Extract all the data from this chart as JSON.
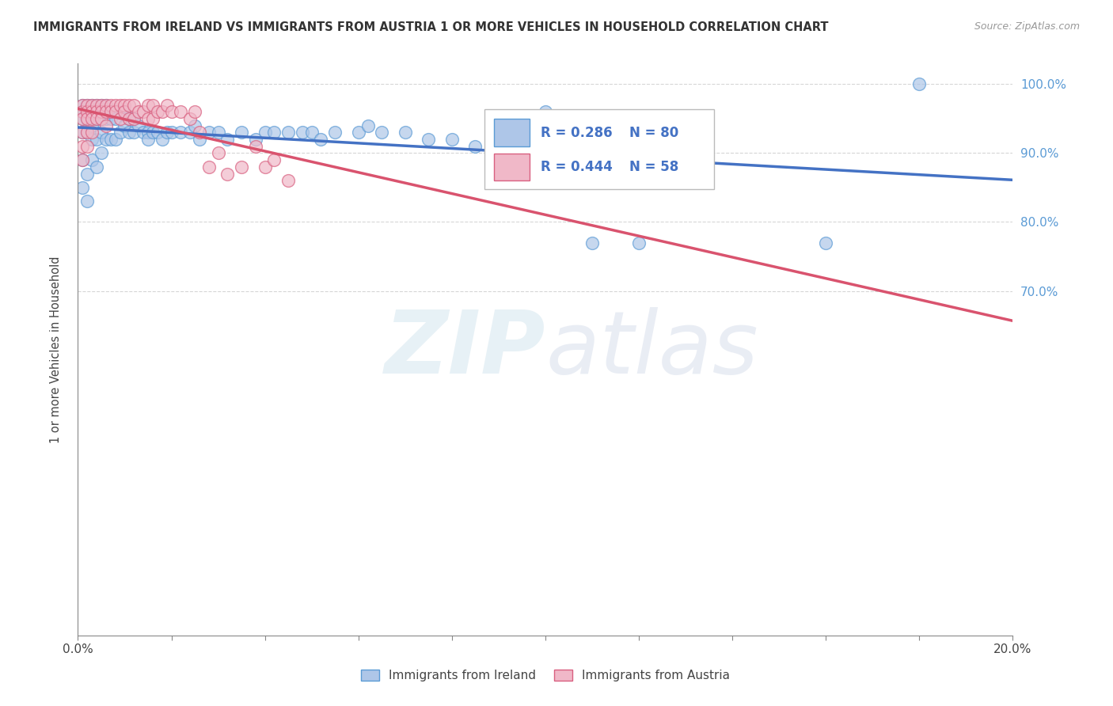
{
  "title": "IMMIGRANTS FROM IRELAND VS IMMIGRANTS FROM AUSTRIA 1 OR MORE VEHICLES IN HOUSEHOLD CORRELATION CHART",
  "source": "Source: ZipAtlas.com",
  "ylabel": "1 or more Vehicles in Household",
  "xlim": [
    0.0,
    0.2
  ],
  "ylim": [
    0.2,
    1.03
  ],
  "ireland_color": "#aec6e8",
  "ireland_edge_color": "#5b9bd5",
  "austria_color": "#f0b8c8",
  "austria_edge_color": "#d96080",
  "trend_ireland_color": "#4472c4",
  "trend_austria_color": "#d9536e",
  "R_ireland": 0.286,
  "N_ireland": 80,
  "R_austria": 0.444,
  "N_austria": 58,
  "legend_ireland": "Immigrants from Ireland",
  "legend_austria": "Immigrants from Austria",
  "background_color": "#ffffff",
  "grid_color": "#cccccc",
  "watermark_zip": "ZIP",
  "watermark_atlas": "atlas",
  "ireland_x": [
    0.001,
    0.001,
    0.001,
    0.001,
    0.001,
    0.001,
    0.002,
    0.002,
    0.002,
    0.002,
    0.002,
    0.002,
    0.003,
    0.003,
    0.003,
    0.003,
    0.003,
    0.004,
    0.004,
    0.004,
    0.004,
    0.005,
    0.005,
    0.005,
    0.005,
    0.006,
    0.006,
    0.006,
    0.007,
    0.007,
    0.007,
    0.008,
    0.008,
    0.009,
    0.009,
    0.01,
    0.01,
    0.011,
    0.011,
    0.012,
    0.012,
    0.013,
    0.014,
    0.015,
    0.015,
    0.016,
    0.017,
    0.018,
    0.019,
    0.02,
    0.022,
    0.024,
    0.025,
    0.026,
    0.028,
    0.03,
    0.032,
    0.035,
    0.038,
    0.04,
    0.042,
    0.045,
    0.048,
    0.05,
    0.052,
    0.055,
    0.06,
    0.062,
    0.065,
    0.07,
    0.075,
    0.08,
    0.085,
    0.09,
    0.095,
    0.1,
    0.11,
    0.12,
    0.18,
    0.16
  ],
  "ireland_y": [
    0.97,
    0.96,
    0.95,
    0.93,
    0.89,
    0.85,
    0.97,
    0.96,
    0.95,
    0.93,
    0.87,
    0.83,
    0.97,
    0.96,
    0.94,
    0.92,
    0.89,
    0.97,
    0.95,
    0.92,
    0.88,
    0.97,
    0.95,
    0.93,
    0.9,
    0.97,
    0.95,
    0.92,
    0.96,
    0.95,
    0.92,
    0.95,
    0.92,
    0.96,
    0.93,
    0.96,
    0.94,
    0.95,
    0.93,
    0.95,
    0.93,
    0.94,
    0.93,
    0.93,
    0.92,
    0.93,
    0.93,
    0.92,
    0.93,
    0.93,
    0.93,
    0.93,
    0.94,
    0.92,
    0.93,
    0.93,
    0.92,
    0.93,
    0.92,
    0.93,
    0.93,
    0.93,
    0.93,
    0.93,
    0.92,
    0.93,
    0.93,
    0.94,
    0.93,
    0.93,
    0.92,
    0.92,
    0.91,
    0.92,
    0.93,
    0.96,
    0.77,
    0.77,
    1.0,
    0.77
  ],
  "austria_x": [
    0.001,
    0.001,
    0.001,
    0.001,
    0.001,
    0.001,
    0.002,
    0.002,
    0.002,
    0.002,
    0.002,
    0.003,
    0.003,
    0.003,
    0.003,
    0.004,
    0.004,
    0.004,
    0.005,
    0.005,
    0.005,
    0.006,
    0.006,
    0.006,
    0.007,
    0.007,
    0.008,
    0.008,
    0.009,
    0.009,
    0.01,
    0.01,
    0.011,
    0.011,
    0.012,
    0.012,
    0.013,
    0.014,
    0.015,
    0.015,
    0.016,
    0.016,
    0.017,
    0.018,
    0.019,
    0.02,
    0.022,
    0.024,
    0.025,
    0.026,
    0.028,
    0.03,
    0.032,
    0.035,
    0.038,
    0.04,
    0.042,
    0.045
  ],
  "austria_y": [
    0.97,
    0.96,
    0.95,
    0.93,
    0.91,
    0.89,
    0.97,
    0.96,
    0.95,
    0.93,
    0.91,
    0.97,
    0.96,
    0.95,
    0.93,
    0.97,
    0.96,
    0.95,
    0.97,
    0.96,
    0.95,
    0.97,
    0.96,
    0.94,
    0.97,
    0.96,
    0.97,
    0.96,
    0.97,
    0.95,
    0.97,
    0.96,
    0.97,
    0.95,
    0.97,
    0.95,
    0.96,
    0.96,
    0.97,
    0.95,
    0.97,
    0.95,
    0.96,
    0.96,
    0.97,
    0.96,
    0.96,
    0.95,
    0.96,
    0.93,
    0.88,
    0.9,
    0.87,
    0.88,
    0.91,
    0.88,
    0.89,
    0.86
  ]
}
